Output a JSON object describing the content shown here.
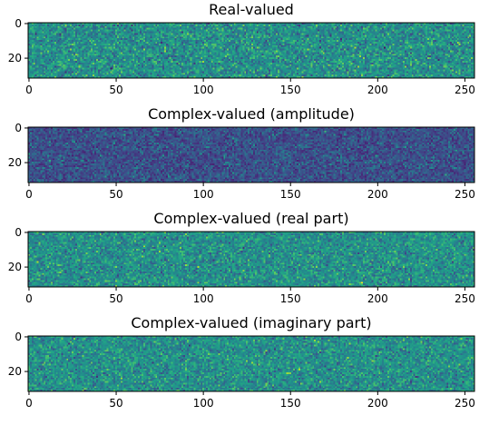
{
  "chart_data": [
    {
      "type": "heatmap",
      "title": "Real-valued",
      "shape": [
        32,
        256
      ],
      "colormap": "viridis",
      "x_ticks": [
        0,
        50,
        100,
        150,
        200,
        250
      ],
      "y_ticks": [
        0,
        20
      ],
      "mean_level": 0.5,
      "spread": 0.12
    },
    {
      "type": "heatmap",
      "title": "Complex-valued (amplitude)",
      "shape": [
        32,
        256
      ],
      "colormap": "viridis",
      "x_ticks": [
        0,
        50,
        100,
        150,
        200,
        250
      ],
      "y_ticks": [
        0,
        20
      ],
      "mean_level": 0.28,
      "spread": 0.16
    },
    {
      "type": "heatmap",
      "title": "Complex-valued (real part)",
      "shape": [
        32,
        256
      ],
      "colormap": "viridis",
      "x_ticks": [
        0,
        50,
        100,
        150,
        200,
        250
      ],
      "y_ticks": [
        0,
        20
      ],
      "mean_level": 0.5,
      "spread": 0.11
    },
    {
      "type": "heatmap",
      "title": "Complex-valued (imaginary part)",
      "shape": [
        32,
        256
      ],
      "colormap": "viridis",
      "x_ticks": [
        0,
        50,
        100,
        150,
        200,
        250
      ],
      "y_ticks": [
        0,
        20
      ],
      "mean_level": 0.5,
      "spread": 0.11
    }
  ]
}
